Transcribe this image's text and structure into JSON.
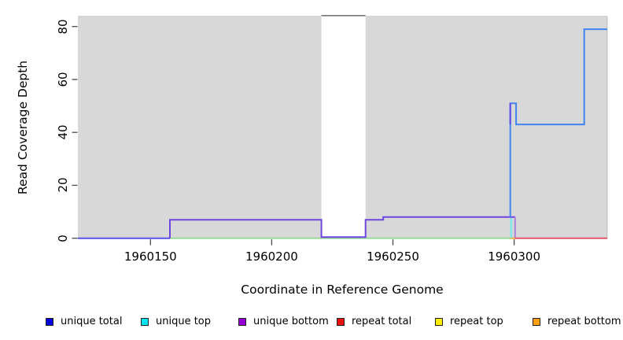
{
  "chart_data": {
    "type": "line",
    "title": "",
    "xlabel": "Coordinate in Reference Genome",
    "ylabel": "Read Coverage Depth",
    "x_ticks": [
      1960150,
      1960200,
      1960250,
      1960300
    ],
    "y_ticks": [
      0,
      20,
      40,
      60,
      80
    ],
    "x_range": [
      1960120,
      1960338.4
    ],
    "y_range": [
      0,
      84
    ],
    "grid": "off",
    "panel_background": "#d8d8d8",
    "gap_band": {
      "x0": 1960220.5,
      "x1": 1960238.7,
      "fill": "#ffffff",
      "cap_color": "#787878"
    },
    "series": [
      {
        "name": "zero-overlap-unique",
        "color": "#5a52e8",
        "width": 2,
        "points": [
          [
            1960120,
            0
          ],
          [
            1960158,
            0
          ]
        ]
      },
      {
        "name": "zero-overlap-top-strand",
        "color": "#95da95",
        "width": 1.8,
        "points": [
          [
            1960158,
            0
          ],
          [
            1960298.6,
            0
          ]
        ]
      },
      {
        "name": "repeat bottom",
        "color": "#f6a62a",
        "width": 2,
        "points": [
          [
            1960298.2,
            0
          ],
          [
            1960300.8,
            0
          ]
        ]
      },
      {
        "name": "repeat total",
        "color": "#e14b66",
        "width": 1.8,
        "points": [
          [
            1960300.4,
            0
          ],
          [
            1960338.4,
            0
          ]
        ]
      },
      {
        "name": "unique top",
        "color": "#84e6e8",
        "width": 2.6,
        "points": [
          [
            1960298.8,
            0
          ],
          [
            1960298.8,
            8
          ]
        ]
      },
      {
        "name": "unique bottom",
        "color": "#6e46e0",
        "width": 2,
        "points": [
          [
            1960158,
            0
          ],
          [
            1960158,
            7
          ],
          [
            1960220.5,
            7
          ],
          [
            1960220.5,
            0.45
          ],
          [
            1960238.7,
            0.45
          ],
          [
            1960238.7,
            7
          ],
          [
            1960246,
            7
          ],
          [
            1960246,
            8
          ],
          [
            1960300.4,
            8
          ]
        ]
      },
      {
        "name": "unique-bottom-drop",
        "color": "#ab82dc",
        "width": 2,
        "points": [
          [
            1960300.4,
            8
          ],
          [
            1960300.4,
            0.3
          ]
        ]
      },
      {
        "name": "unique total",
        "color": "#4184f0",
        "width": 2,
        "points": [
          [
            1960298.4,
            8
          ],
          [
            1960298.4,
            51
          ],
          [
            1960300.8,
            51
          ],
          [
            1960300.8,
            43
          ],
          [
            1960328.9,
            43
          ],
          [
            1960328.9,
            79
          ],
          [
            1960338.4,
            79
          ]
        ]
      },
      {
        "name": "unique-total-spike-accent",
        "color": "#5f48ec",
        "width": 2,
        "points": [
          [
            1960298.4,
            43
          ],
          [
            1960298.4,
            51
          ]
        ]
      }
    ],
    "legend": [
      {
        "label": "unique total",
        "color": "#0000dd"
      },
      {
        "label": "unique top",
        "color": "#00e5ee"
      },
      {
        "label": "unique bottom",
        "color": "#9400d3"
      },
      {
        "label": "repeat total",
        "color": "#ee1111"
      },
      {
        "label": "repeat top",
        "color": "#ffee00"
      },
      {
        "label": "repeat bottom",
        "color": "#ffa010"
      }
    ],
    "legend_position": "bottom"
  }
}
